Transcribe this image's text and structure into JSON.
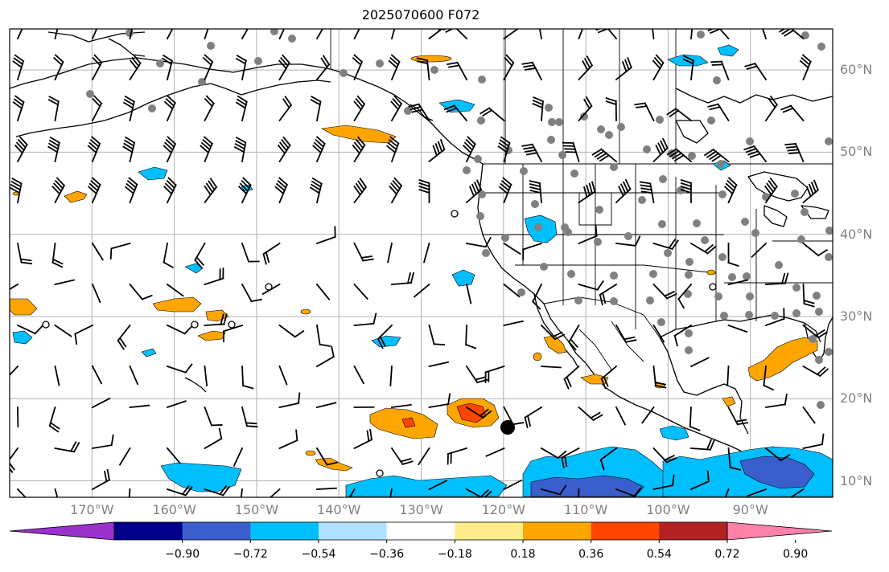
{
  "title": "2025070600 F072",
  "lat_labels": [
    {
      "lat": 60,
      "text": "60°N"
    },
    {
      "lat": 50,
      "text": "50°N"
    },
    {
      "lat": 40,
      "text": "40°N"
    },
    {
      "lat": 30,
      "text": "30°N"
    },
    {
      "lat": 20,
      "text": "20°N"
    },
    {
      "lat": 10,
      "text": "10°N"
    }
  ],
  "lon_labels": [
    {
      "lon": -170,
      "text": "170°W"
    },
    {
      "lon": -160,
      "text": "160°W"
    },
    {
      "lon": -150,
      "text": "150°W"
    },
    {
      "lon": -140,
      "text": "140°W"
    },
    {
      "lon": -130,
      "text": "130°W"
    },
    {
      "lon": -120,
      "text": "120°W"
    },
    {
      "lon": -110,
      "text": "110°W"
    },
    {
      "lon": -100,
      "text": "100°W"
    },
    {
      "lon": -90,
      "text": "90°W"
    }
  ],
  "map_extent": {
    "lon_min": -180,
    "lon_max": -80,
    "lat_min": 8,
    "lat_max": 65
  },
  "colorbar": {
    "ticks": [
      "−0.90",
      "−0.72",
      "−0.54",
      "−0.36",
      "−0.18",
      "0.18",
      "0.36",
      "0.54",
      "0.72",
      "0.90"
    ],
    "colors": [
      "#9932CC",
      "#00008B",
      "#3A5FCD",
      "#00BFFF",
      "#B0E2FF",
      "#FFFFFF",
      "#FFEC8B",
      "#FFA500",
      "#FF4500",
      "#B22222",
      "#FF82AB"
    ]
  },
  "colors": {
    "grid": "#b0b0b0",
    "coast": "#000000",
    "station": "#808080",
    "label": "#808080"
  }
}
